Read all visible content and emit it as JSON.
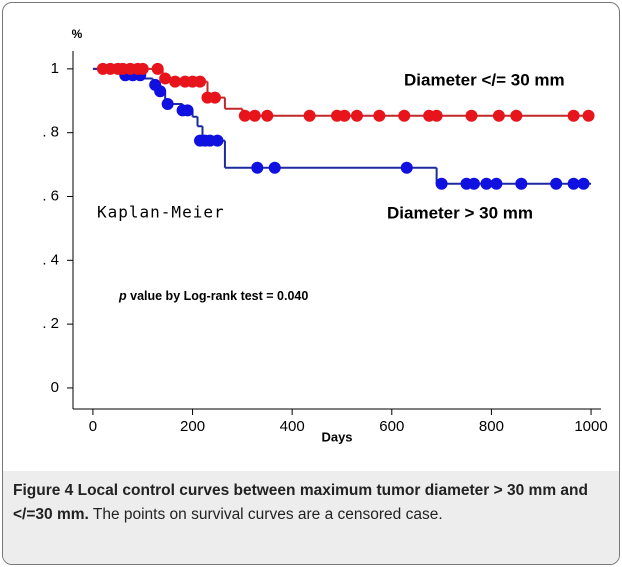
{
  "chart_data": {
    "type": "kaplan-meier",
    "title": "Kaplan-Meier",
    "x_label": "Days",
    "y_label": "%",
    "xlim": [
      -40,
      1020
    ],
    "ylim": [
      -0.066,
      1.056
    ],
    "xticks": [
      0,
      200,
      400,
      600,
      800,
      1000
    ],
    "yticks": [
      0,
      {
        "value": 0.2,
        "label": ". 2"
      },
      {
        "value": 0.4,
        "label": ". 4"
      },
      {
        "value": 0.6,
        "label": ". 6"
      },
      {
        "value": 0.8,
        "label": ". 8"
      },
      1
    ],
    "annotation_italic": "p",
    "annotation": "value by Log-rank test = 0.040",
    "series": [
      {
        "name": "Diameter </= 30 mm",
        "color": "#e8141c",
        "line_color": "#c0282a",
        "x": [
          0,
          140,
          160,
          230,
          265,
          300,
          1000
        ],
        "values": [
          1,
          0.97,
          0.96,
          0.91,
          0.875,
          0.853,
          0.853
        ],
        "censor_x": [
          20,
          35,
          50,
          60,
          75,
          90,
          100,
          130,
          145,
          165,
          185,
          200,
          215,
          230,
          245,
          305,
          325,
          350,
          435,
          490,
          505,
          530,
          575,
          625,
          675,
          690,
          760,
          815,
          850,
          965,
          995
        ],
        "censor_values": [
          1,
          1,
          1,
          1,
          1,
          1,
          1,
          1,
          0.97,
          0.96,
          0.96,
          0.96,
          0.96,
          0.91,
          0.91,
          0.853,
          0.853,
          0.853,
          0.853,
          0.853,
          0.853,
          0.853,
          0.853,
          0.853,
          0.853,
          0.853,
          0.853,
          0.853,
          0.853,
          0.853,
          0.853
        ]
      },
      {
        "name": "Diameter > 30 mm",
        "color": "#1010e0",
        "line_color": "#1c2aa0",
        "x": [
          0,
          55,
          100,
          120,
          135,
          145,
          180,
          200,
          210,
          220,
          265,
          690,
          1000
        ],
        "values": [
          1,
          0.98,
          0.97,
          0.95,
          0.93,
          0.89,
          0.87,
          0.85,
          0.82,
          0.775,
          0.69,
          0.64,
          0.64
        ],
        "censor_x": [
          65,
          80,
          95,
          125,
          135,
          150,
          180,
          190,
          215,
          225,
          235,
          250,
          330,
          365,
          630,
          700,
          750,
          765,
          790,
          810,
          860,
          930,
          965,
          985
        ],
        "censor_values": [
          0.98,
          0.98,
          0.98,
          0.95,
          0.93,
          0.89,
          0.87,
          0.87,
          0.775,
          0.775,
          0.775,
          0.775,
          0.69,
          0.69,
          0.69,
          0.64,
          0.64,
          0.64,
          0.64,
          0.64,
          0.64,
          0.64,
          0.64,
          0.64
        ]
      }
    ]
  },
  "caption": {
    "bold": "Figure 4 Local control curves between maximum tumor diameter > 30 mm and </=30 mm.",
    "text": "The points on survival curves are a censored case."
  }
}
